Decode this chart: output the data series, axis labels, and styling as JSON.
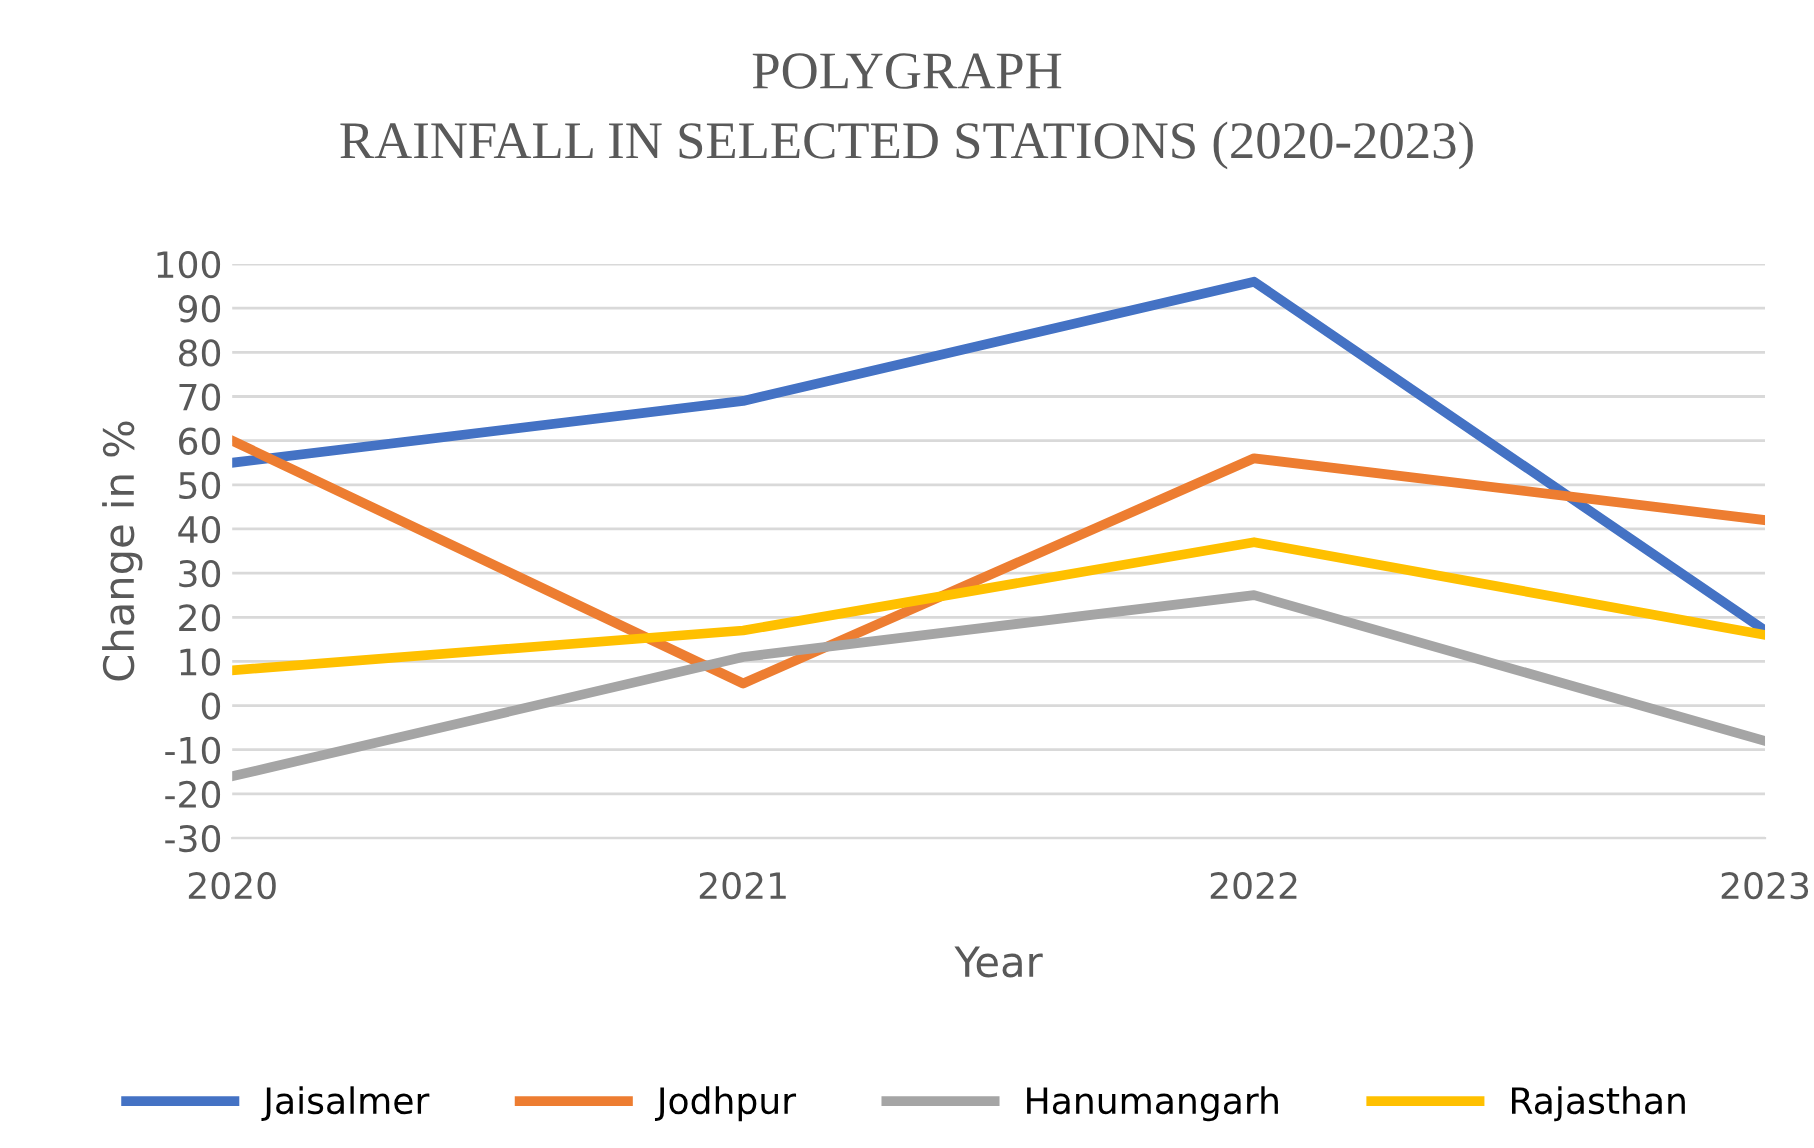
{
  "chart_data": {
    "type": "line",
    "title": "POLYGRAPH\nRAINFALL IN SELECTED STATIONS (2020-2023)",
    "xlabel": "Year",
    "ylabel": "Change in %",
    "x": [
      2020,
      2021,
      2022,
      2023
    ],
    "series": [
      {
        "name": "Jaisalmer",
        "color": "#4472c4",
        "values": [
          55,
          69,
          96,
          17
        ]
      },
      {
        "name": "Jodhpur",
        "color": "#ed7d31",
        "values": [
          60,
          5,
          56,
          42
        ]
      },
      {
        "name": "Hanumangarh",
        "color": "#a5a5a5",
        "values": [
          -16,
          11,
          25,
          -8
        ]
      },
      {
        "name": "Rajasthan",
        "color": "#ffc000",
        "values": [
          8,
          17,
          37,
          16
        ]
      }
    ],
    "xlim": [
      2020,
      2023
    ],
    "xticks": [
      2020,
      2021,
      2022,
      2023
    ],
    "ylim": [
      -30,
      100
    ],
    "yticks": [
      -30,
      -20,
      -10,
      0,
      10,
      20,
      30,
      40,
      50,
      60,
      70,
      80,
      90,
      100
    ],
    "grid": "y",
    "legend": "bottom",
    "marker": "none",
    "line_style": "solid"
  }
}
